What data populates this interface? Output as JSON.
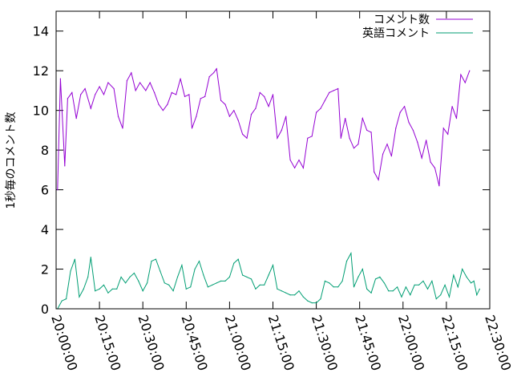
{
  "chart_data": {
    "type": "line",
    "title": "",
    "xlabel": "",
    "ylabel": "1秒毎のコメント数",
    "x_unit": "time",
    "x_range": [
      "20:00:00",
      "22:30:00"
    ],
    "ylim": [
      0,
      15
    ],
    "x_ticks": [
      "20:00:00",
      "20:15:00",
      "20:30:00",
      "20:45:00",
      "21:00:00",
      "21:15:00",
      "21:30:00",
      "21:45:00",
      "22:00:00",
      "22:15:00",
      "22:30:00"
    ],
    "y_ticks": [
      "0",
      "2",
      "4",
      "6",
      "8",
      "10",
      "12",
      "14"
    ],
    "grid": false,
    "legend_position": "top-right",
    "series": [
      {
        "name": "コメント数",
        "color": "#9400d3",
        "points": [
          [
            "20:00:30",
            6.0
          ],
          [
            "20:01:30",
            11.6
          ],
          [
            "20:03:00",
            7.2
          ],
          [
            "20:04:00",
            10.6
          ],
          [
            "20:05:30",
            10.9
          ],
          [
            "20:07:00",
            9.6
          ],
          [
            "20:08:30",
            10.8
          ],
          [
            "20:10:00",
            11.1
          ],
          [
            "20:12:00",
            10.1
          ],
          [
            "20:13:30",
            10.8
          ],
          [
            "20:15:00",
            11.2
          ],
          [
            "20:16:30",
            10.8
          ],
          [
            "20:18:00",
            11.4
          ],
          [
            "20:20:00",
            11.1
          ],
          [
            "20:21:30",
            9.7
          ],
          [
            "20:23:00",
            9.1
          ],
          [
            "20:24:30",
            11.5
          ],
          [
            "20:26:00",
            11.9
          ],
          [
            "20:27:30",
            11.0
          ],
          [
            "20:29:00",
            11.4
          ],
          [
            "20:31:00",
            11.0
          ],
          [
            "20:32:30",
            11.4
          ],
          [
            "20:34:00",
            10.9
          ],
          [
            "20:35:30",
            10.3
          ],
          [
            "20:37:00",
            10.0
          ],
          [
            "20:38:30",
            10.3
          ],
          [
            "20:40:00",
            10.9
          ],
          [
            "20:41:30",
            10.8
          ],
          [
            "20:43:00",
            11.6
          ],
          [
            "20:44:30",
            10.7
          ],
          [
            "20:46:00",
            10.8
          ],
          [
            "20:47:00",
            9.1
          ],
          [
            "20:48:30",
            9.7
          ],
          [
            "20:50:00",
            10.6
          ],
          [
            "20:51:30",
            10.7
          ],
          [
            "20:53:00",
            11.7
          ],
          [
            "20:54:30",
            11.9
          ],
          [
            "20:55:30",
            12.1
          ],
          [
            "20:57:00",
            10.5
          ],
          [
            "20:58:30",
            10.3
          ],
          [
            "21:00:00",
            9.7
          ],
          [
            "21:01:30",
            10.0
          ],
          [
            "21:03:00",
            9.5
          ],
          [
            "21:04:30",
            8.8
          ],
          [
            "21:06:00",
            8.6
          ],
          [
            "21:07:30",
            9.8
          ],
          [
            "21:09:00",
            10.1
          ],
          [
            "21:10:30",
            10.9
          ],
          [
            "21:12:00",
            10.7
          ],
          [
            "21:13:30",
            10.2
          ],
          [
            "21:15:00",
            10.8
          ],
          [
            "21:16:30",
            8.6
          ],
          [
            "21:18:00",
            9.0
          ],
          [
            "21:19:30",
            9.7
          ],
          [
            "21:21:00",
            7.5
          ],
          [
            "21:22:30",
            7.1
          ],
          [
            "21:24:00",
            7.5
          ],
          [
            "21:25:30",
            7.1
          ],
          [
            "21:27:00",
            8.6
          ],
          [
            "21:28:30",
            8.7
          ],
          [
            "21:30:00",
            9.9
          ],
          [
            "21:31:30",
            10.1
          ],
          [
            "21:33:00",
            10.5
          ],
          [
            "21:34:30",
            10.9
          ],
          [
            "21:36:00",
            11.0
          ],
          [
            "21:37:30",
            11.1
          ],
          [
            "21:38:30",
            8.6
          ],
          [
            "21:40:00",
            9.6
          ],
          [
            "21:41:30",
            8.6
          ],
          [
            "21:43:00",
            8.1
          ],
          [
            "21:44:30",
            8.3
          ],
          [
            "21:46:00",
            9.6
          ],
          [
            "21:47:30",
            9.0
          ],
          [
            "21:49:00",
            8.9
          ],
          [
            "21:50:00",
            6.9
          ],
          [
            "21:51:30",
            6.5
          ],
          [
            "21:53:00",
            7.8
          ],
          [
            "21:54:30",
            8.3
          ],
          [
            "21:56:00",
            7.7
          ],
          [
            "21:57:30",
            9.1
          ],
          [
            "21:59:00",
            9.9
          ],
          [
            "22:00:30",
            10.2
          ],
          [
            "22:02:00",
            9.4
          ],
          [
            "22:03:30",
            9.0
          ],
          [
            "22:05:00",
            8.4
          ],
          [
            "22:06:30",
            7.6
          ],
          [
            "22:08:00",
            8.5
          ],
          [
            "22:09:30",
            7.4
          ],
          [
            "22:11:00",
            7.1
          ],
          [
            "22:12:30",
            6.2
          ],
          [
            "22:14:00",
            9.1
          ],
          [
            "22:15:30",
            8.8
          ],
          [
            "22:17:00",
            10.2
          ],
          [
            "22:18:30",
            9.6
          ],
          [
            "22:20:00",
            11.8
          ],
          [
            "22:21:30",
            11.4
          ],
          [
            "22:23:00",
            12.0
          ]
        ]
      },
      {
        "name": "英語コメント",
        "color": "#009e73",
        "points": [
          [
            "20:00:30",
            0.0
          ],
          [
            "20:02:00",
            0.4
          ],
          [
            "20:03:30",
            0.5
          ],
          [
            "20:05:00",
            1.9
          ],
          [
            "20:06:30",
            2.5
          ],
          [
            "20:08:00",
            0.6
          ],
          [
            "20:09:30",
            1.0
          ],
          [
            "20:11:00",
            1.6
          ],
          [
            "20:12:00",
            2.6
          ],
          [
            "20:13:30",
            0.9
          ],
          [
            "20:15:00",
            1.0
          ],
          [
            "20:16:30",
            1.2
          ],
          [
            "20:18:00",
            0.8
          ],
          [
            "20:19:30",
            1.0
          ],
          [
            "20:21:00",
            1.0
          ],
          [
            "20:22:30",
            1.6
          ],
          [
            "20:24:00",
            1.3
          ],
          [
            "20:25:30",
            1.6
          ],
          [
            "20:27:00",
            1.8
          ],
          [
            "20:28:30",
            1.4
          ],
          [
            "20:30:00",
            0.9
          ],
          [
            "20:31:30",
            1.3
          ],
          [
            "20:33:00",
            2.4
          ],
          [
            "20:34:30",
            2.5
          ],
          [
            "20:36:00",
            1.9
          ],
          [
            "20:37:30",
            1.3
          ],
          [
            "20:39:00",
            1.2
          ],
          [
            "20:40:30",
            0.9
          ],
          [
            "20:42:00",
            1.6
          ],
          [
            "20:43:30",
            2.2
          ],
          [
            "20:45:00",
            1.0
          ],
          [
            "20:46:30",
            1.1
          ],
          [
            "20:48:00",
            2.0
          ],
          [
            "20:49:30",
            2.4
          ],
          [
            "20:51:00",
            1.7
          ],
          [
            "20:52:30",
            1.1
          ],
          [
            "20:54:00",
            1.2
          ],
          [
            "20:55:30",
            1.3
          ],
          [
            "20:57:00",
            1.4
          ],
          [
            "20:58:30",
            1.4
          ],
          [
            "21:00:00",
            1.6
          ],
          [
            "21:01:30",
            2.3
          ],
          [
            "21:03:00",
            2.5
          ],
          [
            "21:04:30",
            1.7
          ],
          [
            "21:06:00",
            1.6
          ],
          [
            "21:07:30",
            1.5
          ],
          [
            "21:09:00",
            1.0
          ],
          [
            "21:10:30",
            1.2
          ],
          [
            "21:12:00",
            1.2
          ],
          [
            "21:13:30",
            1.7
          ],
          [
            "21:15:00",
            2.2
          ],
          [
            "21:16:30",
            1.0
          ],
          [
            "21:18:00",
            0.9
          ],
          [
            "21:19:30",
            0.8
          ],
          [
            "21:21:00",
            0.7
          ],
          [
            "21:22:30",
            0.7
          ],
          [
            "21:24:00",
            0.9
          ],
          [
            "21:25:30",
            0.6
          ],
          [
            "21:27:00",
            0.4
          ],
          [
            "21:28:30",
            0.3
          ],
          [
            "21:30:00",
            0.3
          ],
          [
            "21:31:30",
            0.5
          ],
          [
            "21:33:00",
            1.4
          ],
          [
            "21:34:30",
            1.3
          ],
          [
            "21:36:00",
            1.1
          ],
          [
            "21:37:30",
            1.1
          ],
          [
            "21:39:00",
            1.4
          ],
          [
            "21:40:30",
            2.4
          ],
          [
            "21:42:00",
            2.8
          ],
          [
            "21:43:00",
            1.1
          ],
          [
            "21:44:30",
            1.6
          ],
          [
            "21:46:00",
            2.0
          ],
          [
            "21:47:30",
            1.0
          ],
          [
            "21:49:00",
            0.8
          ],
          [
            "21:50:30",
            1.5
          ],
          [
            "21:52:00",
            1.6
          ],
          [
            "21:53:30",
            1.3
          ],
          [
            "21:55:00",
            0.9
          ],
          [
            "21:56:30",
            0.9
          ],
          [
            "21:58:00",
            1.1
          ],
          [
            "21:59:30",
            0.6
          ],
          [
            "22:01:00",
            1.1
          ],
          [
            "22:02:30",
            0.7
          ],
          [
            "22:04:00",
            1.2
          ],
          [
            "22:05:30",
            1.2
          ],
          [
            "22:07:00",
            1.4
          ],
          [
            "22:08:30",
            1.0
          ],
          [
            "22:10:00",
            1.4
          ],
          [
            "22:11:30",
            0.5
          ],
          [
            "22:13:00",
            0.7
          ],
          [
            "22:14:30",
            1.2
          ],
          [
            "22:16:00",
            0.6
          ],
          [
            "22:17:30",
            1.7
          ],
          [
            "22:19:00",
            1.1
          ],
          [
            "22:20:30",
            2.0
          ],
          [
            "22:22:00",
            1.6
          ],
          [
            "22:23:30",
            1.3
          ],
          [
            "22:24:30",
            1.4
          ],
          [
            "22:25:30",
            0.7
          ],
          [
            "22:26:30",
            1.0
          ]
        ]
      }
    ]
  }
}
